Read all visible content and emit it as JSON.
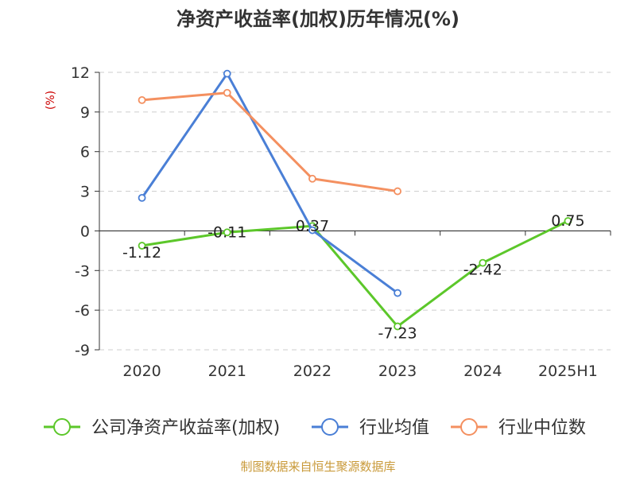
{
  "chart_data": {
    "type": "line",
    "title": "净资产收益率(加权)历年情况(%)",
    "ylabel": "(%)",
    "xlabel": "",
    "categories": [
      "2020",
      "2021",
      "2022",
      "2023",
      "2024",
      "2025H1"
    ],
    "yticks": [
      12,
      9,
      6,
      3,
      0,
      -3,
      -6,
      -9
    ],
    "ylim": [
      -9,
      12
    ],
    "grid": true,
    "legend_position": "bottom",
    "series": [
      {
        "name": "公司净资产收益率(加权)",
        "color": "#5cc72a",
        "values": [
          -1.12,
          -0.11,
          0.37,
          -7.23,
          -2.42,
          0.75
        ],
        "labels": [
          "-1.12",
          "-0.11",
          "0.37",
          "-7.23",
          "-2.42",
          "0.75"
        ]
      },
      {
        "name": "行业均值",
        "color": "#4a7fd6",
        "values": [
          2.5,
          11.9,
          0.05,
          -4.7,
          null,
          null
        ]
      },
      {
        "name": "行业中位数",
        "color": "#f49060",
        "values": [
          9.9,
          10.45,
          3.95,
          3.0,
          null,
          null
        ]
      }
    ],
    "axis_label_color": "#cc0000"
  },
  "footer": {
    "source": "制图数据来自恒生聚源数据库",
    "source_color": "#c99a3a"
  }
}
